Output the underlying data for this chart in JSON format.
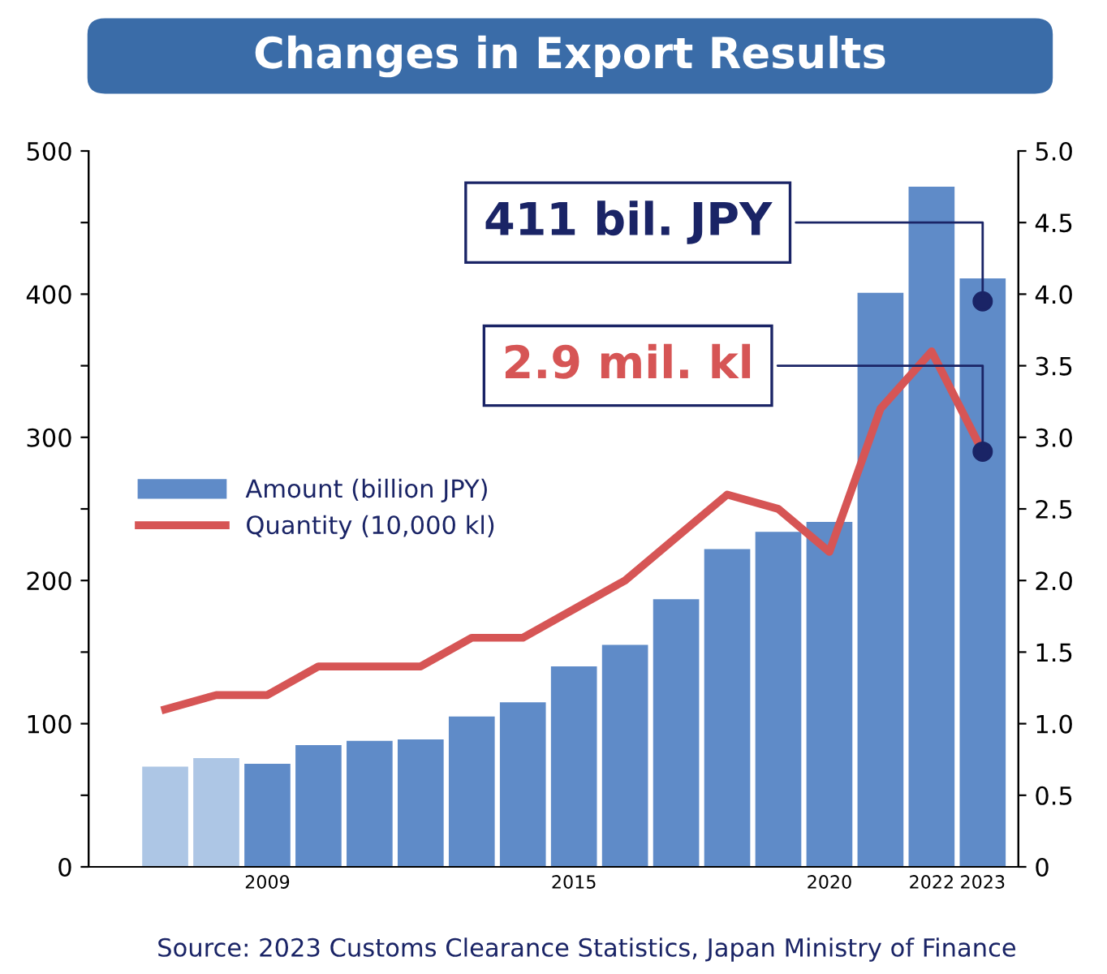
{
  "chart_data": {
    "type": "bar",
    "title": "Changes in Export Results",
    "categories": [
      null,
      null,
      "2009",
      null,
      null,
      null,
      null,
      null,
      "2015",
      null,
      null,
      null,
      null,
      "2020",
      null,
      "2022",
      "2023"
    ],
    "series": [
      {
        "name": "Amount (billion JPY)",
        "color": "#5f8bc8",
        "colors": [
          "#adc6e5",
          "#adc6e5",
          "#5f8bc8",
          "#5f8bc8",
          "#5f8bc8",
          "#5f8bc8",
          "#5f8bc8",
          "#5f8bc8",
          "#5f8bc8",
          "#5f8bc8",
          "#5f8bc8",
          "#5f8bc8",
          "#5f8bc8",
          "#5f8bc8",
          "#5f8bc8",
          "#5f8bc8",
          "#5f8bc8"
        ],
        "values": [
          70,
          76,
          72,
          85,
          88,
          89,
          105,
          115,
          140,
          155,
          187,
          222,
          234,
          241,
          401,
          475,
          411
        ]
      },
      {
        "name": "Quantity (10,000 kl)",
        "type": "line",
        "axis": "y2",
        "color": "#d65555",
        "values": [
          1.1,
          1.2,
          1.2,
          1.4,
          1.4,
          1.4,
          1.6,
          1.6,
          1.8,
          2.0,
          2.3,
          2.6,
          2.5,
          2.2,
          3.2,
          3.6,
          2.9
        ]
      }
    ],
    "ylim": [
      0,
      500
    ],
    "yticks": [
      0,
      {
        "value": 50,
        "label": null
      },
      100,
      {
        "value": 150,
        "label": null
      },
      200,
      {
        "value": 250,
        "label": null
      },
      300,
      {
        "value": 350,
        "label": null
      },
      400,
      {
        "value": 450,
        "label": null
      },
      500
    ],
    "y2lim": [
      0,
      5.0
    ],
    "y2ticks": [
      0,
      0.5,
      {
        "value": 1,
        "label": "1.0"
      },
      1.5,
      {
        "value": 2,
        "label": "2.0"
      },
      2.5,
      {
        "value": 3,
        "label": "3.0"
      },
      3.5,
      {
        "value": 4,
        "label": "4.0"
      },
      4.5,
      {
        "value": 5,
        "label": "5.0"
      }
    ],
    "annotations": [
      {
        "text": "411 bil. JPY",
        "x": "2023",
        "y": 395
      },
      {
        "text": "2.9 mil. kl",
        "x": "2023",
        "y": 290
      },
      "Source: 2023 Customs Clearance Statistics, Japan Ministry of Finance"
    ],
    "legend": "left",
    "grid": false,
    "marker": "none",
    "line_style": "solid"
  }
}
